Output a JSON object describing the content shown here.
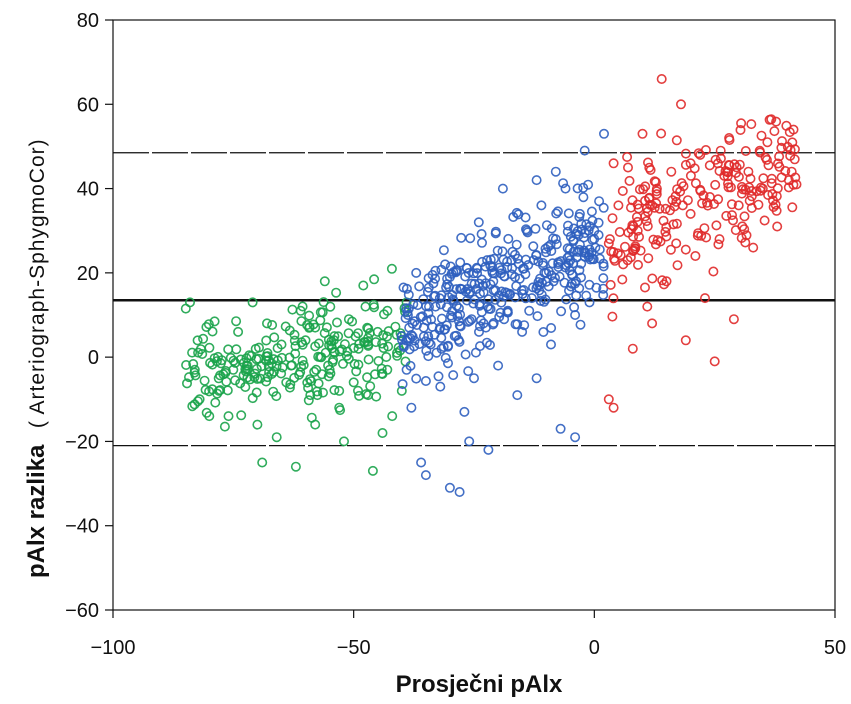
{
  "chart_data": {
    "type": "scatter",
    "title": "",
    "xlabel": "Prosječni pAlx",
    "ylabel": "pAlx razlika (Arteriograph-SphygmoCor)",
    "ylabel_main": "pAlx razlika",
    "ylabel_sub": "( Arteriograph-SphygmoCor)",
    "xlim": [
      -100,
      50
    ],
    "ylim": [
      -60,
      80
    ],
    "xticks": [
      -100,
      -50,
      0,
      50
    ],
    "yticks": [
      -60,
      -40,
      -20,
      0,
      20,
      40,
      60,
      80
    ],
    "xtick_labels": [
      "−100",
      "−50",
      "0",
      "50"
    ],
    "ytick_labels": [
      "−60",
      "−40",
      "−20",
      "0",
      "20",
      "40",
      "60",
      "80"
    ],
    "grid": false,
    "reference_lines": [
      {
        "y": 13.5,
        "style": "solid"
      },
      {
        "y": 48.5,
        "style": "dashed"
      },
      {
        "y": -21.0,
        "style": "dashed"
      }
    ],
    "series": [
      {
        "color": "#1aa34a",
        "x_range": [
          -85,
          -39
        ],
        "points": [
          [
            -84,
            13
          ],
          [
            -83,
            -3
          ],
          [
            -82,
            -10
          ],
          [
            -80,
            -14
          ],
          [
            -78,
            -8
          ],
          [
            -76,
            -14
          ],
          [
            -75,
            -3
          ],
          [
            -74,
            6
          ],
          [
            -72,
            -2
          ],
          [
            -71,
            13
          ],
          [
            -70,
            -16
          ],
          [
            -69,
            -25
          ],
          [
            -68,
            8
          ],
          [
            -67,
            -4
          ],
          [
            -66,
            -19
          ],
          [
            -65,
            3
          ],
          [
            -64,
            -6
          ],
          [
            -63,
            -2
          ],
          [
            -62,
            -26
          ],
          [
            -61,
            11
          ],
          [
            -60,
            4
          ],
          [
            -59,
            -9
          ],
          [
            -58,
            -16
          ],
          [
            -57,
            0
          ],
          [
            -56,
            18
          ],
          [
            -55,
            -3
          ],
          [
            -54,
            5
          ],
          [
            -53,
            -12
          ],
          [
            -52,
            -20
          ],
          [
            -51,
            9
          ],
          [
            -50,
            -6
          ],
          [
            -49,
            2
          ],
          [
            -48,
            17
          ],
          [
            -47,
            -9
          ],
          [
            -46,
            -27
          ],
          [
            -45,
            6
          ],
          [
            -44,
            -4
          ],
          [
            -43,
            11
          ],
          [
            -42,
            -14
          ],
          [
            -41,
            1
          ],
          [
            -40,
            -8
          ],
          [
            -39,
            13
          ],
          [
            -58,
            7
          ],
          [
            -53,
            -8
          ],
          [
            -47,
            3
          ],
          [
            -44,
            -18
          ]
        ]
      },
      {
        "color": "#2f5fbf",
        "x_range": [
          -40,
          2
        ],
        "points": [
          [
            -40,
            5
          ],
          [
            -39,
            -3
          ],
          [
            -38,
            -12
          ],
          [
            -37,
            20
          ],
          [
            -36,
            -25
          ],
          [
            -35,
            -28
          ],
          [
            -34,
            3
          ],
          [
            -33,
            12
          ],
          [
            -32,
            -7
          ],
          [
            -31,
            22
          ],
          [
            -30,
            -31
          ],
          [
            -29,
            5
          ],
          [
            -28,
            -32
          ],
          [
            -27,
            -13
          ],
          [
            -26,
            15
          ],
          [
            -25,
            -5
          ],
          [
            -24,
            32
          ],
          [
            -23,
            8
          ],
          [
            -22,
            -22
          ],
          [
            -21,
            18
          ],
          [
            -20,
            -2
          ],
          [
            -19,
            40
          ],
          [
            -18,
            11
          ],
          [
            -17,
            25
          ],
          [
            -16,
            -9
          ],
          [
            -15,
            6
          ],
          [
            -14,
            30
          ],
          [
            -13,
            14
          ],
          [
            -12,
            -5
          ],
          [
            -11,
            36
          ],
          [
            -10,
            20
          ],
          [
            -9,
            3
          ],
          [
            -8,
            28
          ],
          [
            -7,
            -17
          ],
          [
            -6,
            40
          ],
          [
            -5,
            23
          ],
          [
            -4,
            10
          ],
          [
            -3,
            34
          ],
          [
            -2,
            49
          ],
          [
            -1,
            13
          ],
          [
            0,
            30
          ],
          [
            1,
            37
          ],
          [
            2,
            53
          ],
          [
            -12,
            42
          ],
          [
            -26,
            -20
          ],
          [
            -30,
            19
          ],
          [
            -8,
            44
          ],
          [
            -4,
            -19
          ]
        ]
      },
      {
        "color": "#e02a2a",
        "x_range": [
          3,
          42
        ],
        "points": [
          [
            3,
            27
          ],
          [
            3,
            -10
          ],
          [
            4,
            46
          ],
          [
            4,
            -12
          ],
          [
            5,
            36
          ],
          [
            6,
            22
          ],
          [
            7,
            45
          ],
          [
            8,
            2
          ],
          [
            9,
            30
          ],
          [
            10,
            53
          ],
          [
            11,
            12
          ],
          [
            12,
            36
          ],
          [
            13,
            40
          ],
          [
            14,
            66
          ],
          [
            15,
            18
          ],
          [
            16,
            44
          ],
          [
            17,
            27
          ],
          [
            18,
            60
          ],
          [
            19,
            4
          ],
          [
            20,
            34
          ],
          [
            21,
            24
          ],
          [
            22,
            48
          ],
          [
            23,
            14
          ],
          [
            24,
            38
          ],
          [
            25,
            -1
          ],
          [
            26,
            28
          ],
          [
            27,
            43
          ],
          [
            28,
            52
          ],
          [
            29,
            9
          ],
          [
            30,
            36
          ],
          [
            32,
            44
          ],
          [
            33,
            26
          ],
          [
            35,
            40
          ],
          [
            38,
            31
          ],
          [
            41,
            44
          ],
          [
            42,
            41
          ],
          [
            12,
            8
          ],
          [
            20,
            46
          ]
        ]
      }
    ]
  }
}
